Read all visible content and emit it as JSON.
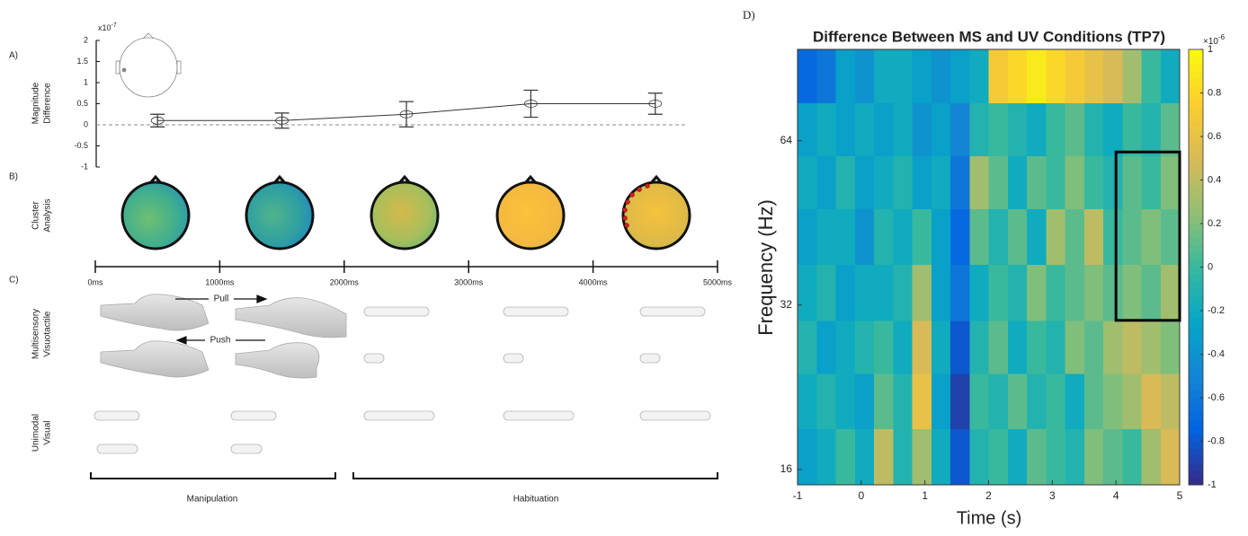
{
  "panel_labels": {
    "a": "A)",
    "b": "B)",
    "c": "C)",
    "d": "D)"
  },
  "panel_b": {
    "row_label": [
      "Cluster",
      "Analysis"
    ]
  },
  "panel_c": {
    "pull": "Pull",
    "push": "Push",
    "rows": [
      [
        "Multisensory",
        "Visuotactile"
      ],
      [
        "Unimodal",
        "Visual"
      ]
    ],
    "phases": [
      "Manipulation",
      "Habituation"
    ]
  },
  "chart_data": [
    {
      "type": "line",
      "y_label": [
        "Magnitude",
        "Difference"
      ],
      "y_multiplier": "x10",
      "y_exponent": "-7",
      "x": [
        500,
        1500,
        2500,
        3500,
        4500
      ],
      "values": [
        0.1,
        0.1,
        0.25,
        0.5,
        0.5
      ],
      "errors": [
        0.15,
        0.18,
        0.3,
        0.32,
        0.25
      ],
      "color": "#333333",
      "xlim": [
        0,
        5000
      ],
      "xticks": [
        {
          "value": 0,
          "label": "0ms"
        },
        {
          "value": 1000,
          "label": "1000ms"
        },
        {
          "value": 2000,
          "label": "2000ms"
        },
        {
          "value": 3000,
          "label": "3000ms"
        },
        {
          "value": 4000,
          "label": "4000ms"
        },
        {
          "value": 5000,
          "label": "5000ms"
        }
      ],
      "ylim": [
        -1,
        2
      ],
      "yticks": [
        -1,
        -0.5,
        0,
        0.5,
        1,
        1.5,
        2
      ],
      "hline": 0
    },
    {
      "type": "heatmap",
      "title": "Difference Between MS and UV Conditions (TP7)",
      "x_label": "Time (s)",
      "y_label": "Frequency (Hz)",
      "colormap": "parula",
      "xlim": [
        -1,
        5
      ],
      "xticks": [
        -1,
        0,
        1,
        2,
        3,
        4,
        5
      ],
      "ylim": [
        15,
        94
      ],
      "y_scale": "log",
      "yticks": [
        16,
        32,
        64
      ],
      "zlim": [
        -1,
        1
      ],
      "zticks": [
        -1,
        -0.8,
        -0.6,
        -0.4,
        -0.2,
        0,
        0.2,
        0.4,
        0.6,
        0.8,
        1
      ],
      "z_multiplier": "×10",
      "z_exponent": "-6",
      "x_edges": [
        -1,
        -0.7,
        -0.4,
        -0.1,
        0.2,
        0.5,
        0.8,
        1.1,
        1.4,
        1.7,
        2.0,
        2.3,
        2.6,
        2.9,
        3.2,
        3.5,
        3.8,
        4.1,
        4.4,
        4.7,
        5
      ],
      "y_edges": [
        15,
        19,
        24,
        30,
        38,
        48,
        60,
        75,
        94
      ],
      "values": [
        [
          -0.3,
          -0.2,
          0.0,
          -0.2,
          0.4,
          -0.1,
          0.3,
          -0.2,
          -0.8,
          -0.1,
          0.0,
          -0.2,
          0.1,
          0.0,
          -0.1,
          0.2,
          0.1,
          0.0,
          0.3,
          0.5
        ],
        [
          -0.2,
          -0.1,
          -0.2,
          -0.3,
          0.1,
          -0.1,
          0.6,
          -0.3,
          -0.9,
          0.0,
          -0.1,
          0.1,
          -0.1,
          0.0,
          -0.2,
          0.1,
          0.2,
          0.3,
          0.5,
          0.4
        ],
        [
          -0.1,
          -0.3,
          -0.2,
          -0.1,
          0.0,
          -0.2,
          0.5,
          -0.2,
          -0.8,
          -0.1,
          0.1,
          -0.2,
          0.0,
          -0.1,
          0.2,
          0.1,
          0.3,
          0.4,
          0.3,
          0.2
        ],
        [
          -0.2,
          -0.1,
          -0.3,
          -0.2,
          -0.2,
          -0.1,
          0.3,
          -0.3,
          -0.6,
          -0.2,
          0.0,
          -0.1,
          0.2,
          0.0,
          0.1,
          0.2,
          0.1,
          0.2,
          0.1,
          0.3
        ],
        [
          -0.3,
          -0.2,
          -0.2,
          -0.4,
          -0.1,
          -0.2,
          0.0,
          -0.3,
          -0.7,
          0.1,
          -0.1,
          0.1,
          -0.2,
          0.3,
          0.1,
          0.4,
          0.0,
          0.1,
          0.2,
          0.1
        ],
        [
          -0.2,
          -0.3,
          -0.1,
          -0.3,
          -0.2,
          -0.1,
          -0.3,
          -0.2,
          -0.6,
          0.3,
          0.1,
          -0.2,
          0.1,
          0.0,
          0.2,
          0.0,
          -0.1,
          0.1,
          0.0,
          0.2
        ],
        [
          -0.3,
          -0.2,
          -0.3,
          -0.2,
          -0.3,
          -0.2,
          -0.4,
          -0.3,
          -0.5,
          -0.1,
          0.0,
          -0.1,
          -0.2,
          0.0,
          0.1,
          -0.1,
          -0.2,
          0.0,
          -0.1,
          0.1
        ],
        [
          -0.7,
          -0.6,
          -0.3,
          -0.4,
          -0.2,
          -0.2,
          -0.3,
          -0.4,
          -0.3,
          -0.2,
          0.7,
          0.8,
          0.9,
          0.8,
          0.7,
          0.6,
          0.5,
          0.3,
          0.0,
          -0.2
        ]
      ],
      "highlight": {
        "xlim": [
          4,
          5
        ],
        "ylim": [
          30,
          61
        ]
      }
    }
  ]
}
